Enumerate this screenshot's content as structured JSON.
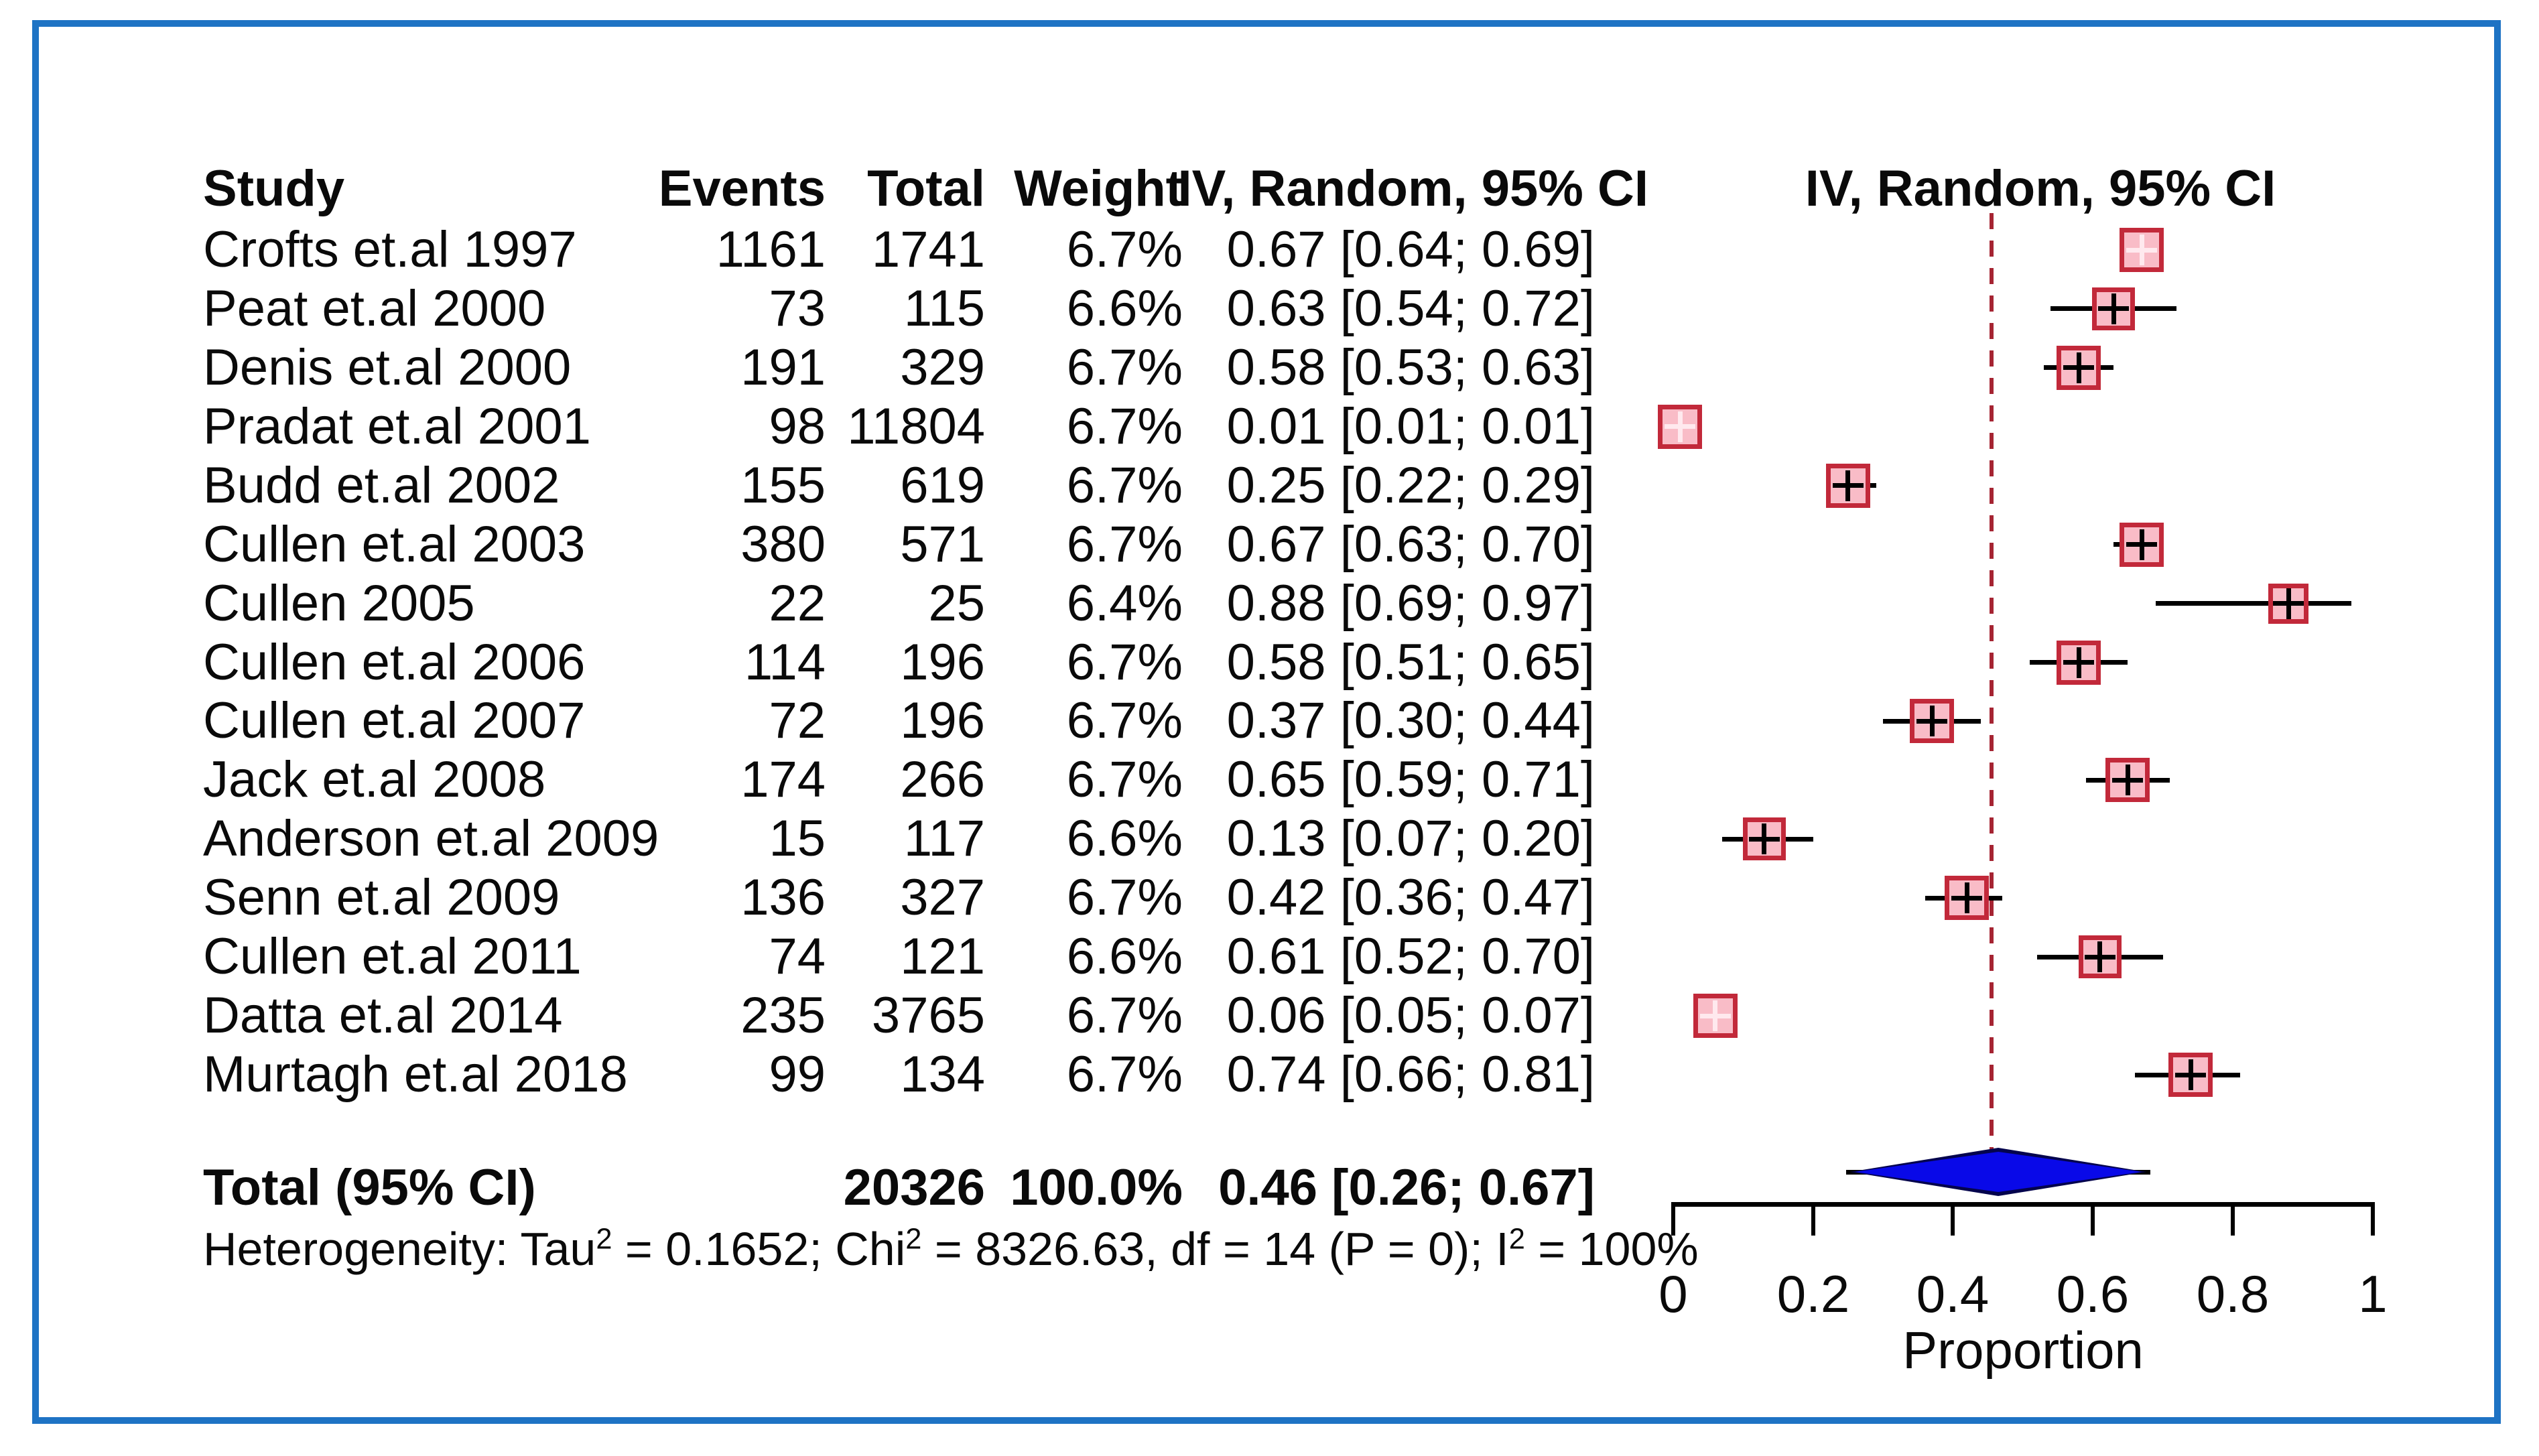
{
  "chart_data": {
    "type": "forest",
    "columns": {
      "study": "Study",
      "events": "Events",
      "total": "Total",
      "weight": "Weight",
      "ci": "IV, Random, 95% CI"
    },
    "plot_column_header": "IV, Random, 95% CI",
    "studies": [
      {
        "study": "Crofts et.al 1997",
        "events": "1161",
        "total": "1741",
        "weight": "6.7%",
        "ci_text": "0.67 [0.64; 0.69]",
        "est": 0.67,
        "lo": 0.64,
        "hi": 0.69
      },
      {
        "study": "Peat et.al 2000",
        "events": "73",
        "total": "115",
        "weight": "6.6%",
        "ci_text": "0.63 [0.54; 0.72]",
        "est": 0.63,
        "lo": 0.54,
        "hi": 0.72
      },
      {
        "study": "Denis et.al 2000",
        "events": "191",
        "total": "329",
        "weight": "6.7%",
        "ci_text": "0.58 [0.53; 0.63]",
        "est": 0.58,
        "lo": 0.53,
        "hi": 0.63
      },
      {
        "study": "Pradat et.al 2001",
        "events": "98",
        "total": "11804",
        "weight": "6.7%",
        "ci_text": "0.01 [0.01; 0.01]",
        "est": 0.01,
        "lo": 0.01,
        "hi": 0.01
      },
      {
        "study": "Budd et.al 2002",
        "events": "155",
        "total": "619",
        "weight": "6.7%",
        "ci_text": "0.25 [0.22; 0.29]",
        "est": 0.25,
        "lo": 0.22,
        "hi": 0.29
      },
      {
        "study": "Cullen et.al 2003",
        "events": "380",
        "total": "571",
        "weight": "6.7%",
        "ci_text": "0.67 [0.63; 0.70]",
        "est": 0.67,
        "lo": 0.63,
        "hi": 0.7
      },
      {
        "study": "Cullen 2005",
        "events": "22",
        "total": "25",
        "weight": "6.4%",
        "ci_text": "0.88 [0.69; 0.97]",
        "est": 0.88,
        "lo": 0.69,
        "hi": 0.97
      },
      {
        "study": "Cullen et.al 2006",
        "events": "114",
        "total": "196",
        "weight": "6.7%",
        "ci_text": "0.58 [0.51; 0.65]",
        "est": 0.58,
        "lo": 0.51,
        "hi": 0.65
      },
      {
        "study": "Cullen et.al 2007",
        "events": "72",
        "total": "196",
        "weight": "6.7%",
        "ci_text": "0.37 [0.30; 0.44]",
        "est": 0.37,
        "lo": 0.3,
        "hi": 0.44
      },
      {
        "study": "Jack et.al 2008",
        "events": "174",
        "total": "266",
        "weight": "6.7%",
        "ci_text": "0.65 [0.59; 0.71]",
        "est": 0.65,
        "lo": 0.59,
        "hi": 0.71
      },
      {
        "study": "Anderson et.al 2009",
        "events": "15",
        "total": "117",
        "weight": "6.6%",
        "ci_text": "0.13 [0.07; 0.20]",
        "est": 0.13,
        "lo": 0.07,
        "hi": 0.2
      },
      {
        "study": "Senn et.al 2009",
        "events": "136",
        "total": "327",
        "weight": "6.7%",
        "ci_text": "0.42 [0.36; 0.47]",
        "est": 0.42,
        "lo": 0.36,
        "hi": 0.47
      },
      {
        "study": "Cullen et.al 2011",
        "events": "74",
        "total": "121",
        "weight": "6.6%",
        "ci_text": "0.61 [0.52; 0.70]",
        "est": 0.61,
        "lo": 0.52,
        "hi": 0.7
      },
      {
        "study": "Datta et.al 2014",
        "events": "235",
        "total": "3765",
        "weight": "6.7%",
        "ci_text": "0.06 [0.05; 0.07]",
        "est": 0.06,
        "lo": 0.05,
        "hi": 0.07
      },
      {
        "study": "Murtagh et.al 2018",
        "events": "99",
        "total": "134",
        "weight": "6.7%",
        "ci_text": "0.74 [0.66; 0.81]",
        "est": 0.74,
        "lo": 0.66,
        "hi": 0.81
      }
    ],
    "total": {
      "label": "Total (95% CI)",
      "total": "20326",
      "weight": "100.0%",
      "ci_text": "0.46 [0.26; 0.67]",
      "est": 0.46,
      "lo": 0.26,
      "hi": 0.67
    },
    "heterogeneity_segments": [
      {
        "t": "Heterogeneity: Tau"
      },
      {
        "sup": "2"
      },
      {
        "t": " = 0.1652; Chi"
      },
      {
        "sup": "2"
      },
      {
        "t": " = 8326.63, df = 14 (P = 0); I"
      },
      {
        "sup": "2"
      },
      {
        "t": " = 100%"
      }
    ],
    "xaxis": {
      "min": 0,
      "max": 1,
      "tick_values": [
        0,
        0.2,
        0.4,
        0.6,
        0.8,
        1
      ],
      "tick_labels": [
        "0",
        "0.2",
        "0.4",
        "0.6",
        "0.8",
        "1"
      ],
      "label": "Proportion"
    },
    "reference_line_x": 0.46,
    "colors": {
      "square_fill": "#f9bcc7",
      "square_border": "#c2293a",
      "tight_ci_marker": "#ffe9ee",
      "ci_line": "#000000",
      "diamond_fill": "#0909e8",
      "diamond_border": "#04044d",
      "dashed_reference_line": "#a52432",
      "frame_border": "#1e73c4"
    }
  }
}
